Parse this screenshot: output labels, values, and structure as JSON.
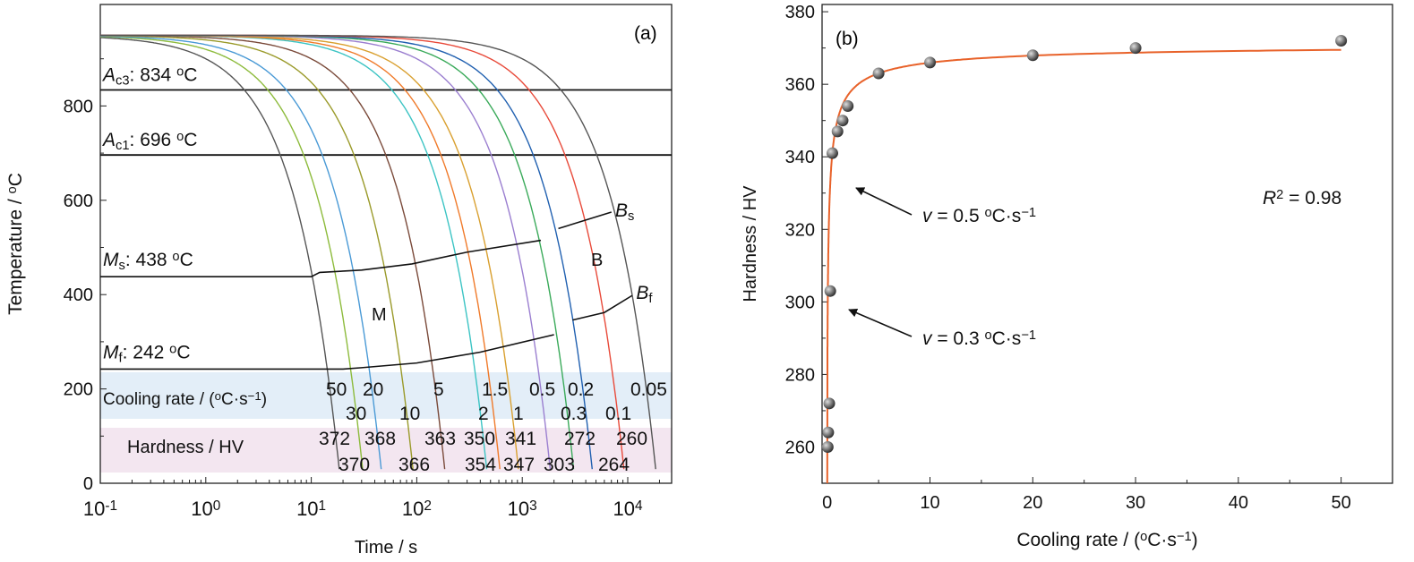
{
  "chart_data": [
    {
      "panel": "(a)",
      "type": "line",
      "xlabel": "Time / s",
      "ylabel": "Temperature / oC",
      "xscale": "log",
      "xlim": [
        0.1,
        25000
      ],
      "ylim": [
        0,
        1015
      ],
      "xticks": [
        {
          "base": "10",
          "exp": "-1",
          "v": 0.1
        },
        {
          "base": "10",
          "exp": "0",
          "v": 1
        },
        {
          "base": "10",
          "exp": "1",
          "v": 10
        },
        {
          "base": "10",
          "exp": "2",
          "v": 100
        },
        {
          "base": "10",
          "exp": "3",
          "v": 1000
        },
        {
          "base": "10",
          "exp": "4",
          "v": 10000
        }
      ],
      "yticks": [
        0,
        200,
        400,
        600,
        800
      ],
      "start_temperature": 950,
      "end_temperature": 30,
      "series": [
        {
          "rate": "50",
          "hardness": "372",
          "color": "#555555"
        },
        {
          "rate": "30",
          "hardness": "370",
          "color": "#8dbb3c"
        },
        {
          "rate": "20",
          "hardness": "368",
          "color": "#4a9ad6"
        },
        {
          "rate": "10",
          "hardness": "366",
          "color": "#9a9a2a"
        },
        {
          "rate": "5",
          "hardness": "363",
          "color": "#7a4a3a"
        },
        {
          "rate": "2",
          "hardness": "354",
          "color": "#3cc4c4"
        },
        {
          "rate": "1.5",
          "hardness": "350",
          "color": "#f07a2a"
        },
        {
          "rate": "1",
          "hardness": "347",
          "color": "#d9a030"
        },
        {
          "rate": "0.5",
          "hardness": "341",
          "color": "#9b7fd0"
        },
        {
          "rate": "0.3",
          "hardness": "303",
          "color": "#3aaa5a"
        },
        {
          "rate": "0.2",
          "hardness": "272",
          "color": "#2060b0"
        },
        {
          "rate": "0.1",
          "hardness": "264",
          "color": "#e84a3a"
        },
        {
          "rate": "0.05",
          "hardness": "260",
          "color": "#555555"
        }
      ],
      "hlines": [
        {
          "sym": "A",
          "sub": "c3",
          "text": ": 834 ",
          "sup": "o",
          "unit": "C",
          "value": 834
        },
        {
          "sym": "A",
          "sub": "c1",
          "text": ": 696 ",
          "sup": "o",
          "unit": "C",
          "value": 696
        }
      ],
      "ms": {
        "sym": "M",
        "sub": "s",
        "text": ": 438 ",
        "sup": "o",
        "unit": "C",
        "points": [
          [
            0.1,
            438
          ],
          [
            10,
            438
          ],
          [
            12,
            447
          ],
          [
            30,
            452
          ],
          [
            90,
            465
          ],
          [
            300,
            490
          ],
          [
            1500,
            515
          ]
        ]
      },
      "mf": {
        "sym": "M",
        "sub": "f",
        "text": ": 242 ",
        "sup": "o",
        "unit": "C",
        "points": [
          [
            0.1,
            242
          ],
          [
            20,
            242
          ],
          [
            30,
            245
          ],
          [
            100,
            255
          ],
          [
            400,
            278
          ],
          [
            2000,
            315
          ]
        ]
      },
      "bs": {
        "sym": "B",
        "sub": "s",
        "points": [
          [
            2200,
            540
          ],
          [
            7000,
            575
          ]
        ]
      },
      "bf": {
        "sym": "B",
        "sub": "f",
        "points": [
          [
            3000,
            346
          ],
          [
            6000,
            362
          ],
          [
            11000,
            398
          ]
        ]
      },
      "region_labels": {
        "m": "M",
        "b": "B"
      },
      "band_labels": {
        "cooling_rate": "Cooling rate / (",
        "cooling_sup": "o",
        "cooling_mid": "C·s",
        "cooling_sup2": "−1",
        "cooling_end": ")",
        "hardness": "Hardness / HV"
      }
    },
    {
      "panel": "(b)",
      "type": "scatter",
      "xlabel": "Cooling rate / (oC·s−1)",
      "ylabel": "Hardness / HV",
      "xlim": [
        -0.5,
        55
      ],
      "ylim": [
        250,
        382
      ],
      "xticks": [
        0,
        10,
        20,
        30,
        40,
        50
      ],
      "yticks": [
        260,
        280,
        300,
        320,
        340,
        360,
        380
      ],
      "points": [
        [
          0.05,
          260
        ],
        [
          0.1,
          264
        ],
        [
          0.2,
          272
        ],
        [
          0.3,
          303
        ],
        [
          0.5,
          341
        ],
        [
          1,
          347
        ],
        [
          1.5,
          350
        ],
        [
          2,
          354
        ],
        [
          5,
          363
        ],
        [
          10,
          366
        ],
        [
          20,
          368
        ],
        [
          30,
          370
        ],
        [
          50,
          372
        ]
      ],
      "fit_color": "#e8622a",
      "annotations": [
        {
          "pre": "v",
          "text": " = 0.5 ",
          "sup": "o",
          "unit": "C·s",
          "sup2": "−1"
        },
        {
          "pre": "v",
          "text": " = 0.3 ",
          "sup": "o",
          "unit": "C·s",
          "sup2": "−1"
        }
      ],
      "r2": {
        "sym": "R",
        "sup": "2",
        "text": " = 0.98"
      }
    }
  ]
}
